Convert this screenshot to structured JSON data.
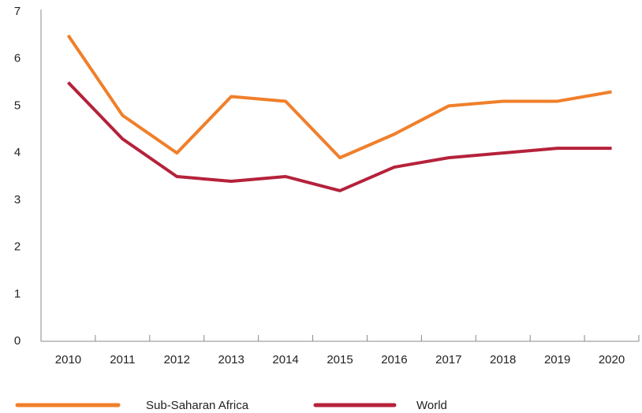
{
  "chart_data": {
    "type": "line",
    "categories": [
      "2010",
      "2011",
      "2012",
      "2013",
      "2014",
      "2015",
      "2016",
      "2017",
      "2018",
      "2019",
      "2020"
    ],
    "series": [
      {
        "name": "Sub-Saharan Africa",
        "color": "#f07f2a",
        "values": [
          6.5,
          4.8,
          4.0,
          5.2,
          5.1,
          3.9,
          4.4,
          5.0,
          5.1,
          5.1,
          5.3
        ]
      },
      {
        "name": "World",
        "color": "#b5223b",
        "values": [
          5.5,
          4.3,
          3.5,
          3.4,
          3.5,
          3.2,
          3.7,
          3.9,
          4.0,
          4.1,
          4.1
        ]
      }
    ],
    "ylim": [
      0,
      7
    ],
    "yticks": [
      0,
      1,
      2,
      3,
      4,
      5,
      6,
      7
    ],
    "grid": false,
    "legend": "bottom"
  }
}
